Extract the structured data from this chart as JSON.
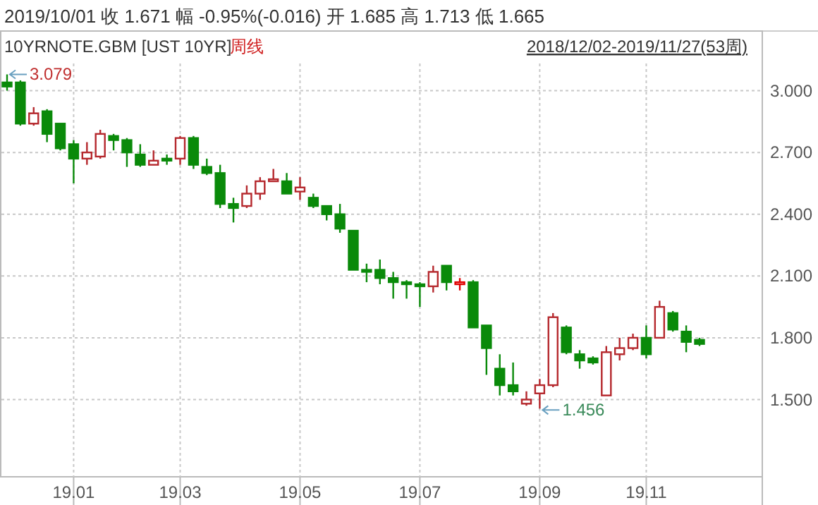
{
  "chart_data": {
    "type": "candlestick",
    "title": "10YRNOTE.GBM [UST 10YR]",
    "subtitle": "周线",
    "annotations": [
      "2019/10/01 收 1.671 幅 -0.95%(-0.016) 开 1.685 高 1.713 低 1.665",
      "2018/12/02-2019/11/27(53周)",
      "3.079",
      "1.456"
    ],
    "categories": [
      null,
      null,
      null,
      null,
      null,
      "19.01",
      null,
      null,
      null,
      null,
      null,
      null,
      null,
      "19.03",
      null,
      null,
      null,
      null,
      null,
      null,
      null,
      null,
      "19.05",
      null,
      null,
      null,
      null,
      null,
      null,
      null,
      null,
      "19.07",
      null,
      null,
      null,
      null,
      null,
      null,
      null,
      null,
      "19.09",
      null,
      null,
      null,
      null,
      null,
      null,
      null,
      "19.11",
      null,
      null,
      null,
      null
    ],
    "ohlc": [
      [
        3.04,
        3.079,
        3.0,
        3.02
      ],
      [
        3.04,
        3.05,
        2.83,
        2.84
      ],
      [
        2.84,
        2.92,
        2.83,
        2.89
      ],
      [
        2.9,
        2.91,
        2.75,
        2.79
      ],
      [
        2.84,
        2.84,
        2.71,
        2.72
      ],
      [
        2.74,
        2.76,
        2.55,
        2.67
      ],
      [
        2.67,
        2.75,
        2.64,
        2.7
      ],
      [
        2.68,
        2.81,
        2.67,
        2.79
      ],
      [
        2.78,
        2.79,
        2.71,
        2.76
      ],
      [
        2.76,
        2.77,
        2.63,
        2.7
      ],
      [
        2.69,
        2.74,
        2.63,
        2.64
      ],
      [
        2.64,
        2.71,
        2.64,
        2.66
      ],
      [
        2.67,
        2.69,
        2.64,
        2.66
      ],
      [
        2.67,
        2.78,
        2.64,
        2.77
      ],
      [
        2.77,
        2.78,
        2.62,
        2.64
      ],
      [
        2.63,
        2.67,
        2.59,
        2.6
      ],
      [
        2.6,
        2.64,
        2.43,
        2.45
      ],
      [
        2.45,
        2.48,
        2.36,
        2.43
      ],
      [
        2.44,
        2.54,
        2.43,
        2.5
      ],
      [
        2.5,
        2.58,
        2.47,
        2.56
      ],
      [
        2.56,
        2.62,
        2.56,
        2.57
      ],
      [
        2.56,
        2.6,
        2.5,
        2.5
      ],
      [
        2.51,
        2.58,
        2.47,
        2.53
      ],
      [
        2.48,
        2.5,
        2.43,
        2.44
      ],
      [
        2.44,
        2.44,
        2.37,
        2.4
      ],
      [
        2.4,
        2.45,
        2.31,
        2.33
      ],
      [
        2.32,
        2.32,
        2.13,
        2.13
      ],
      [
        2.13,
        2.16,
        2.07,
        2.12
      ],
      [
        2.13,
        2.18,
        2.06,
        2.09
      ],
      [
        2.09,
        2.12,
        1.99,
        2.07
      ],
      [
        2.07,
        2.08,
        1.99,
        2.06
      ],
      [
        2.06,
        2.07,
        1.95,
        2.05
      ],
      [
        2.05,
        2.15,
        2.02,
        2.12
      ],
      [
        2.15,
        2.15,
        2.03,
        2.07
      ],
      [
        2.06,
        2.09,
        2.03,
        2.07
      ],
      [
        2.07,
        2.08,
        1.85,
        1.85
      ],
      [
        1.86,
        1.86,
        1.62,
        1.75
      ],
      [
        1.65,
        1.72,
        1.52,
        1.57
      ],
      [
        1.57,
        1.68,
        1.52,
        1.54
      ],
      [
        1.48,
        1.54,
        1.47,
        1.5
      ],
      [
        1.53,
        1.6,
        1.456,
        1.57
      ],
      [
        1.57,
        1.92,
        1.56,
        1.9
      ],
      [
        1.85,
        1.86,
        1.72,
        1.73
      ],
      [
        1.72,
        1.74,
        1.65,
        1.69
      ],
      [
        1.7,
        1.71,
        1.67,
        1.68
      ],
      [
        1.52,
        1.76,
        1.52,
        1.73
      ],
      [
        1.72,
        1.8,
        1.69,
        1.75
      ],
      [
        1.75,
        1.82,
        1.74,
        1.8
      ],
      [
        1.8,
        1.86,
        1.7,
        1.72
      ],
      [
        1.8,
        1.98,
        1.8,
        1.95
      ],
      [
        1.92,
        1.93,
        1.83,
        1.84
      ],
      [
        1.83,
        1.86,
        1.73,
        1.78
      ],
      [
        1.79,
        1.8,
        1.76,
        1.77
      ]
    ],
    "colors": [
      "#0a8a0a",
      "#0a8a0a",
      "#b5282d",
      "#0a8a0a",
      "#0a8a0a",
      "#0a8a0a",
      "#b5282d",
      "#b5282d",
      "#0a8a0a",
      "#0a8a0a",
      "#0a8a0a",
      "#b5282d",
      "#0a8a0a",
      "#b5282d",
      "#0a8a0a",
      "#0a8a0a",
      "#0a8a0a",
      "#0a8a0a",
      "#b5282d",
      "#b5282d",
      "#b5282d",
      "#0a8a0a",
      "#b5282d",
      "#0a8a0a",
      "#0a8a0a",
      "#0a8a0a",
      "#0a8a0a",
      "#0a8a0a",
      "#0a8a0a",
      "#0a8a0a",
      "#0a8a0a",
      "#0a8a0a",
      "#b5282d",
      "#0a8a0a",
      "#e00000",
      "#0a8a0a",
      "#0a8a0a",
      "#0a8a0a",
      "#0a8a0a",
      "#b5282d",
      "#b5282d",
      "#b5282d",
      "#0a8a0a",
      "#0a8a0a",
      "#0a8a0a",
      "#b5282d",
      "#b5282d",
      "#b5282d",
      "#0a8a0a",
      "#b5282d",
      "#0a8a0a",
      "#0a8a0a",
      "#0a8a0a"
    ],
    "ylim": [
      1.125,
      3.132
    ],
    "yticks": [
      {
        "value": 1.5,
        "label": "1.500"
      },
      {
        "value": 1.8,
        "label": "1.800"
      },
      {
        "value": 2.1,
        "label": "2.100"
      },
      {
        "value": 2.4,
        "label": "2.400"
      },
      {
        "value": 2.7,
        "label": "2.700"
      },
      {
        "value": 3.0,
        "label": "3.000"
      }
    ],
    "grid": true
  }
}
